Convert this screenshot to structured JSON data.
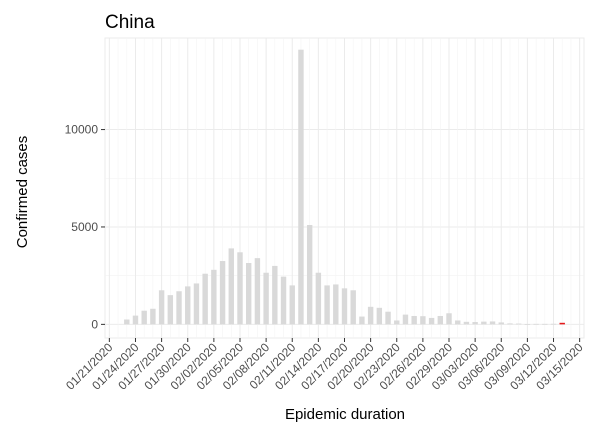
{
  "chart_data": {
    "type": "bar",
    "title": "China",
    "xlabel": "Epidemic duration",
    "ylabel": "Confirmed cases",
    "ylim": [
      -700,
      14700
    ],
    "yticks": [
      0,
      5000,
      10000
    ],
    "ytick_labels": [
      "0",
      "5000",
      "10000"
    ],
    "x_tick_labels": [
      "01/21/2020",
      "01/24/2020",
      "01/27/2020",
      "01/30/2020",
      "02/02/2020",
      "02/05/2020",
      "02/08/2020",
      "02/11/2020",
      "02/14/2020",
      "02/17/2020",
      "02/20/2020",
      "02/23/2020",
      "02/26/2020",
      "02/29/2020",
      "03/03/2020",
      "03/06/2020",
      "03/09/2020",
      "03/12/2020",
      "03/15/2020"
    ],
    "grid": true,
    "bar_color": "#d9d9d9",
    "highlight_color": "#e41a1c",
    "highlight_date": "03/13/2020",
    "dates": [
      "01/21/2020",
      "01/22/2020",
      "01/23/2020",
      "01/24/2020",
      "01/25/2020",
      "01/26/2020",
      "01/27/2020",
      "01/28/2020",
      "01/29/2020",
      "01/30/2020",
      "01/31/2020",
      "02/01/2020",
      "02/02/2020",
      "02/03/2020",
      "02/04/2020",
      "02/05/2020",
      "02/06/2020",
      "02/07/2020",
      "02/08/2020",
      "02/09/2020",
      "02/10/2020",
      "02/11/2020",
      "02/12/2020",
      "02/13/2020",
      "02/14/2020",
      "02/15/2020",
      "02/16/2020",
      "02/17/2020",
      "02/18/2020",
      "02/19/2020",
      "02/20/2020",
      "02/21/2020",
      "02/22/2020",
      "02/23/2020",
      "02/24/2020",
      "02/25/2020",
      "02/26/2020",
      "02/27/2020",
      "02/28/2020",
      "02/29/2020",
      "03/01/2020",
      "03/02/2020",
      "03/03/2020",
      "03/04/2020",
      "03/05/2020",
      "03/06/2020",
      "03/07/2020",
      "03/08/2020",
      "03/09/2020",
      "03/10/2020",
      "03/11/2020",
      "03/12/2020",
      "03/13/2020",
      "03/14/2020",
      "03/15/2020"
    ],
    "values": [
      0,
      0,
      250,
      450,
      700,
      800,
      1750,
      1500,
      1700,
      1950,
      2100,
      2600,
      2800,
      3250,
      3900,
      3700,
      3150,
      3400,
      2650,
      3000,
      2450,
      2000,
      14100,
      5100,
      2650,
      2000,
      2050,
      1850,
      1750,
      400,
      900,
      850,
      650,
      200,
      500,
      430,
      420,
      330,
      430,
      570,
      200,
      130,
      120,
      140,
      150,
      100,
      50,
      40,
      20,
      25,
      25,
      30,
      80,
      0,
      0
    ]
  }
}
